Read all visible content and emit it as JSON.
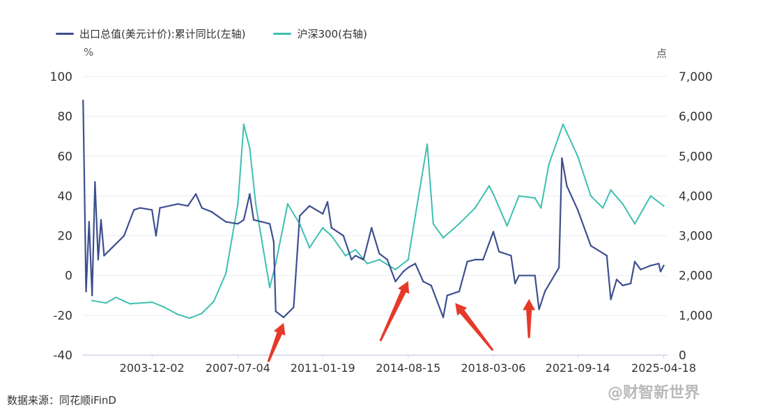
{
  "legend": {
    "series1": "出口总值(美元计价):累计同比(左轴)",
    "series2": "沪深300(右轴)"
  },
  "units": {
    "left": "%",
    "right": "点"
  },
  "source": "数据来源：同花顺iFinD",
  "watermark": "@财智新世界",
  "colors": {
    "series1": "#3d4f8f",
    "series2": "#3dbfb0",
    "arrow": "#e53a2a",
    "grid": "#e8ecf5"
  },
  "chart_data": {
    "type": "line",
    "x_ticks": [
      "2003-12-02",
      "2007-07-04",
      "2011-01-19",
      "2014-08-15",
      "2018-03-06",
      "2021-09-14",
      "2025-04-18"
    ],
    "y_left": {
      "ylim": [
        -40,
        100
      ],
      "ticks": [
        "-40",
        "-20",
        "0",
        "20",
        "40",
        "60",
        "80",
        "100"
      ]
    },
    "y_right": {
      "ylim": [
        0,
        7000
      ],
      "ticks": [
        "0",
        "1,000",
        "2,000",
        "3,000",
        "4,000",
        "5,000",
        "6,000",
        "7,000"
      ]
    },
    "grid": true,
    "legend_position": "top-left",
    "series": [
      {
        "name": "出口总值(美元计价):累计同比(左轴)",
        "axis": "left",
        "points": [
          [
            "2001-01-15",
            88
          ],
          [
            "2001-03-01",
            -8
          ],
          [
            "2001-04-15",
            27
          ],
          [
            "2001-06-01",
            -10
          ],
          [
            "2001-07-15",
            47
          ],
          [
            "2001-09-01",
            8
          ],
          [
            "2001-10-15",
            28
          ],
          [
            "2001-12-01",
            10
          ],
          [
            "2002-04-01",
            14
          ],
          [
            "2002-10-01",
            20
          ],
          [
            "2003-03-01",
            33
          ],
          [
            "2003-06-01",
            34
          ],
          [
            "2003-12-01",
            33
          ],
          [
            "2004-02-01",
            20
          ],
          [
            "2004-04-01",
            34
          ],
          [
            "2005-01-01",
            36
          ],
          [
            "2005-06-01",
            35
          ],
          [
            "2005-10-01",
            41
          ],
          [
            "2006-01-01",
            34
          ],
          [
            "2006-06-01",
            32
          ],
          [
            "2007-01-01",
            27
          ],
          [
            "2007-07-04",
            26
          ],
          [
            "2007-10-01",
            28
          ],
          [
            "2008-01-01",
            41
          ],
          [
            "2008-03-01",
            28
          ],
          [
            "2008-07-01",
            27
          ],
          [
            "2008-11-01",
            26
          ],
          [
            "2009-01-01",
            17
          ],
          [
            "2009-02-01",
            -18
          ],
          [
            "2009-06-01",
            -21
          ],
          [
            "2009-11-01",
            -16
          ],
          [
            "2010-02-01",
            30
          ],
          [
            "2010-07-01",
            35
          ],
          [
            "2011-01-19",
            31
          ],
          [
            "2011-04-01",
            37
          ],
          [
            "2011-06-01",
            24
          ],
          [
            "2011-12-01",
            20
          ],
          [
            "2012-04-01",
            8
          ],
          [
            "2012-06-01",
            10
          ],
          [
            "2012-10-01",
            8
          ],
          [
            "2013-02-01",
            24
          ],
          [
            "2013-06-01",
            11
          ],
          [
            "2013-10-01",
            8
          ],
          [
            "2014-02-01",
            -3
          ],
          [
            "2014-06-01",
            2
          ],
          [
            "2014-08-15",
            4
          ],
          [
            "2014-12-01",
            6
          ],
          [
            "2015-04-01",
            -3
          ],
          [
            "2015-08-01",
            -5
          ],
          [
            "2016-02-01",
            -21
          ],
          [
            "2016-04-01",
            -10
          ],
          [
            "2016-10-01",
            -8
          ],
          [
            "2017-02-01",
            7
          ],
          [
            "2017-06-01",
            8
          ],
          [
            "2017-10-01",
            8
          ],
          [
            "2018-03-06",
            22
          ],
          [
            "2018-06-01",
            12
          ],
          [
            "2018-12-01",
            10
          ],
          [
            "2019-02-01",
            -4
          ],
          [
            "2019-04-01",
            0
          ],
          [
            "2019-12-01",
            0
          ],
          [
            "2020-02-01",
            -17
          ],
          [
            "2020-05-01",
            -8
          ],
          [
            "2020-12-01",
            4
          ],
          [
            "2021-01-15",
            59
          ],
          [
            "2021-04-01",
            45
          ],
          [
            "2021-09-14",
            33
          ],
          [
            "2022-04-01",
            15
          ],
          [
            "2022-12-01",
            10
          ],
          [
            "2023-02-01",
            -12
          ],
          [
            "2023-05-01",
            -2
          ],
          [
            "2023-08-01",
            -5
          ],
          [
            "2023-12-01",
            -4
          ],
          [
            "2024-02-01",
            7
          ],
          [
            "2024-05-01",
            3
          ],
          [
            "2024-10-01",
            5
          ],
          [
            "2025-02-01",
            6
          ],
          [
            "2025-03-01",
            2
          ],
          [
            "2025-04-18",
            5
          ]
        ]
      },
      {
        "name": "沪深300(右轴)",
        "axis": "right",
        "points": [
          [
            "2001-06-01",
            1370
          ],
          [
            "2002-01-01",
            1310
          ],
          [
            "2002-06-01",
            1450
          ],
          [
            "2003-01-01",
            1290
          ],
          [
            "2003-12-02",
            1330
          ],
          [
            "2004-06-01",
            1210
          ],
          [
            "2005-01-01",
            1020
          ],
          [
            "2005-07-01",
            930
          ],
          [
            "2006-01-01",
            1050
          ],
          [
            "2006-07-01",
            1350
          ],
          [
            "2007-01-01",
            2050
          ],
          [
            "2007-07-04",
            3800
          ],
          [
            "2007-10-01",
            5800
          ],
          [
            "2008-01-01",
            5200
          ],
          [
            "2008-04-01",
            3800
          ],
          [
            "2008-08-01",
            2600
          ],
          [
            "2008-11-01",
            1700
          ],
          [
            "2009-02-01",
            2300
          ],
          [
            "2009-08-01",
            3800
          ],
          [
            "2010-02-01",
            3300
          ],
          [
            "2010-07-01",
            2700
          ],
          [
            "2011-01-19",
            3200
          ],
          [
            "2011-06-01",
            3000
          ],
          [
            "2012-01-01",
            2500
          ],
          [
            "2012-06-01",
            2650
          ],
          [
            "2012-12-01",
            2300
          ],
          [
            "2013-06-01",
            2400
          ],
          [
            "2014-02-01",
            2150
          ],
          [
            "2014-08-15",
            2400
          ],
          [
            "2014-12-01",
            3500
          ],
          [
            "2015-06-01",
            5300
          ],
          [
            "2015-09-01",
            3300
          ],
          [
            "2016-02-01",
            2950
          ],
          [
            "2016-10-01",
            3300
          ],
          [
            "2017-06-01",
            3700
          ],
          [
            "2018-01-01",
            4250
          ],
          [
            "2018-03-06",
            4050
          ],
          [
            "2018-10-01",
            3250
          ],
          [
            "2019-04-01",
            4000
          ],
          [
            "2019-12-01",
            3950
          ],
          [
            "2020-03-01",
            3700
          ],
          [
            "2020-07-01",
            4800
          ],
          [
            "2021-02-01",
            5800
          ],
          [
            "2021-09-14",
            5000
          ],
          [
            "2022-04-01",
            4000
          ],
          [
            "2022-10-01",
            3700
          ],
          [
            "2023-02-01",
            4150
          ],
          [
            "2023-08-01",
            3800
          ],
          [
            "2024-02-01",
            3300
          ],
          [
            "2024-10-01",
            4000
          ],
          [
            "2025-04-18",
            3750
          ]
        ]
      }
    ],
    "annotations": [
      {
        "type": "arrow",
        "date": "2009-06-01",
        "value": -21
      },
      {
        "type": "arrow",
        "date": "2014-08-15",
        "value": 0
      },
      {
        "type": "arrow",
        "date": "2016-08-01",
        "value": -11
      },
      {
        "type": "arrow",
        "date": "2019-09-01",
        "value": -9
      }
    ]
  }
}
